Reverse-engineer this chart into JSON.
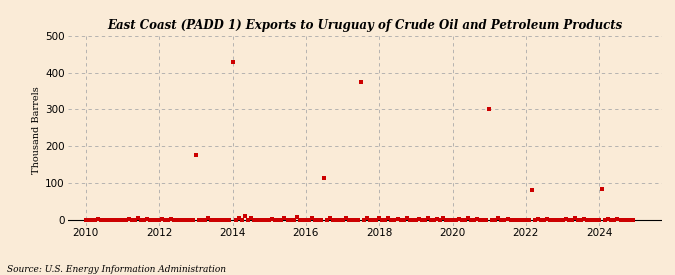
{
  "title": "East Coast (PADD 1) Exports to Uruguay of Crude Oil and Petroleum Products",
  "ylabel": "Thousand Barrels",
  "source": "Source: U.S. Energy Information Administration",
  "bg_color": "#faebd7",
  "plot_bg_color": "#faebd7",
  "marker_color": "#cc0000",
  "marker_size": 6,
  "xlim": [
    2009.5,
    2025.7
  ],
  "ylim": [
    -15,
    500
  ],
  "yticks": [
    0,
    100,
    200,
    300,
    400,
    500
  ],
  "xticks": [
    2010,
    2012,
    2014,
    2016,
    2018,
    2020,
    2022,
    2024
  ],
  "grid_color": "#aaaaaa",
  "data_points": [
    [
      2010.0,
      0
    ],
    [
      2010.083,
      0
    ],
    [
      2010.167,
      0
    ],
    [
      2010.25,
      0
    ],
    [
      2010.333,
      2
    ],
    [
      2010.417,
      0
    ],
    [
      2010.5,
      0
    ],
    [
      2010.583,
      0
    ],
    [
      2010.667,
      0
    ],
    [
      2010.75,
      0
    ],
    [
      2010.833,
      0
    ],
    [
      2010.917,
      0
    ],
    [
      2011.0,
      0
    ],
    [
      2011.083,
      0
    ],
    [
      2011.167,
      3
    ],
    [
      2011.25,
      0
    ],
    [
      2011.333,
      0
    ],
    [
      2011.417,
      5
    ],
    [
      2011.5,
      0
    ],
    [
      2011.583,
      0
    ],
    [
      2011.667,
      2
    ],
    [
      2011.75,
      0
    ],
    [
      2011.833,
      0
    ],
    [
      2011.917,
      0
    ],
    [
      2012.0,
      0
    ],
    [
      2012.083,
      3
    ],
    [
      2012.167,
      0
    ],
    [
      2012.25,
      0
    ],
    [
      2012.333,
      2
    ],
    [
      2012.417,
      0
    ],
    [
      2012.5,
      0
    ],
    [
      2012.583,
      0
    ],
    [
      2012.667,
      0
    ],
    [
      2012.75,
      0
    ],
    [
      2012.833,
      0
    ],
    [
      2012.917,
      0
    ],
    [
      2013.0,
      175
    ],
    [
      2013.083,
      0
    ],
    [
      2013.167,
      0
    ],
    [
      2013.25,
      0
    ],
    [
      2013.333,
      4
    ],
    [
      2013.417,
      0
    ],
    [
      2013.5,
      0
    ],
    [
      2013.583,
      0
    ],
    [
      2013.667,
      0
    ],
    [
      2013.75,
      0
    ],
    [
      2013.833,
      0
    ],
    [
      2013.917,
      0
    ],
    [
      2014.0,
      430
    ],
    [
      2014.083,
      0
    ],
    [
      2014.167,
      5
    ],
    [
      2014.25,
      0
    ],
    [
      2014.333,
      10
    ],
    [
      2014.417,
      0
    ],
    [
      2014.5,
      5
    ],
    [
      2014.583,
      0
    ],
    [
      2014.667,
      0
    ],
    [
      2014.75,
      0
    ],
    [
      2014.833,
      0
    ],
    [
      2014.917,
      0
    ],
    [
      2015.0,
      0
    ],
    [
      2015.083,
      3
    ],
    [
      2015.167,
      0
    ],
    [
      2015.25,
      0
    ],
    [
      2015.333,
      0
    ],
    [
      2015.417,
      5
    ],
    [
      2015.5,
      0
    ],
    [
      2015.583,
      0
    ],
    [
      2015.667,
      0
    ],
    [
      2015.75,
      8
    ],
    [
      2015.833,
      0
    ],
    [
      2015.917,
      0
    ],
    [
      2016.0,
      0
    ],
    [
      2016.083,
      0
    ],
    [
      2016.167,
      5
    ],
    [
      2016.25,
      0
    ],
    [
      2016.333,
      0
    ],
    [
      2016.417,
      0
    ],
    [
      2016.5,
      115
    ],
    [
      2016.583,
      0
    ],
    [
      2016.667,
      5
    ],
    [
      2016.75,
      0
    ],
    [
      2016.833,
      0
    ],
    [
      2016.917,
      0
    ],
    [
      2017.0,
      0
    ],
    [
      2017.083,
      5
    ],
    [
      2017.167,
      0
    ],
    [
      2017.25,
      0
    ],
    [
      2017.333,
      0
    ],
    [
      2017.417,
      0
    ],
    [
      2017.5,
      375
    ],
    [
      2017.583,
      0
    ],
    [
      2017.667,
      5
    ],
    [
      2017.75,
      0
    ],
    [
      2017.833,
      0
    ],
    [
      2017.917,
      0
    ],
    [
      2018.0,
      5
    ],
    [
      2018.083,
      0
    ],
    [
      2018.167,
      0
    ],
    [
      2018.25,
      5
    ],
    [
      2018.333,
      0
    ],
    [
      2018.417,
      0
    ],
    [
      2018.5,
      3
    ],
    [
      2018.583,
      0
    ],
    [
      2018.667,
      0
    ],
    [
      2018.75,
      5
    ],
    [
      2018.833,
      0
    ],
    [
      2018.917,
      0
    ],
    [
      2019.0,
      0
    ],
    [
      2019.083,
      3
    ],
    [
      2019.167,
      0
    ],
    [
      2019.25,
      0
    ],
    [
      2019.333,
      5
    ],
    [
      2019.417,
      0
    ],
    [
      2019.5,
      0
    ],
    [
      2019.583,
      3
    ],
    [
      2019.667,
      0
    ],
    [
      2019.75,
      5
    ],
    [
      2019.833,
      0
    ],
    [
      2019.917,
      0
    ],
    [
      2020.0,
      0
    ],
    [
      2020.083,
      0
    ],
    [
      2020.167,
      3
    ],
    [
      2020.25,
      0
    ],
    [
      2020.333,
      0
    ],
    [
      2020.417,
      5
    ],
    [
      2020.5,
      0
    ],
    [
      2020.583,
      0
    ],
    [
      2020.667,
      3
    ],
    [
      2020.75,
      0
    ],
    [
      2020.833,
      0
    ],
    [
      2020.917,
      0
    ],
    [
      2021.0,
      300
    ],
    [
      2021.083,
      0
    ],
    [
      2021.167,
      0
    ],
    [
      2021.25,
      5
    ],
    [
      2021.333,
      0
    ],
    [
      2021.417,
      0
    ],
    [
      2021.5,
      3
    ],
    [
      2021.583,
      0
    ],
    [
      2021.667,
      0
    ],
    [
      2021.75,
      0
    ],
    [
      2021.833,
      0
    ],
    [
      2021.917,
      0
    ],
    [
      2022.0,
      0
    ],
    [
      2022.083,
      0
    ],
    [
      2022.167,
      80
    ],
    [
      2022.25,
      0
    ],
    [
      2022.333,
      3
    ],
    [
      2022.417,
      0
    ],
    [
      2022.5,
      0
    ],
    [
      2022.583,
      3
    ],
    [
      2022.667,
      0
    ],
    [
      2022.75,
      0
    ],
    [
      2022.833,
      0
    ],
    [
      2022.917,
      0
    ],
    [
      2023.0,
      0
    ],
    [
      2023.083,
      3
    ],
    [
      2023.167,
      0
    ],
    [
      2023.25,
      0
    ],
    [
      2023.333,
      5
    ],
    [
      2023.417,
      0
    ],
    [
      2023.5,
      0
    ],
    [
      2023.583,
      3
    ],
    [
      2023.667,
      0
    ],
    [
      2023.75,
      0
    ],
    [
      2023.833,
      0
    ],
    [
      2023.917,
      0
    ],
    [
      2024.0,
      0
    ],
    [
      2024.083,
      85
    ],
    [
      2024.167,
      0
    ],
    [
      2024.25,
      3
    ],
    [
      2024.333,
      0
    ],
    [
      2024.417,
      0
    ],
    [
      2024.5,
      3
    ],
    [
      2024.583,
      0
    ],
    [
      2024.667,
      0
    ],
    [
      2024.75,
      0
    ],
    [
      2024.833,
      0
    ],
    [
      2024.917,
      0
    ]
  ]
}
